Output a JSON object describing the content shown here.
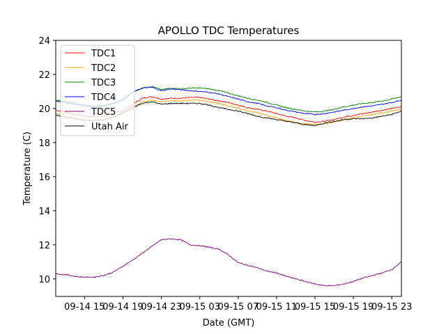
{
  "chart_data": {
    "type": "line",
    "title": "APOLLO TDC Temperatures",
    "xlabel": "Date (GMT)",
    "ylabel": "Temperature (C)",
    "x_unit": "hours since 09-14 00:00 GMT",
    "xlim": [
      12,
      48
    ],
    "ylim": [
      8.97,
      24
    ],
    "grid": false,
    "legend_position": "top-left",
    "x_ticks": [
      15,
      19,
      23,
      27,
      31,
      35,
      39,
      43,
      47
    ],
    "x_tick_labels": [
      "09-14 15",
      "09-14 19",
      "09-14 23",
      "09-15 03",
      "09-15 07",
      "09-15 11",
      "09-15 15",
      "09-15 19",
      "09-15 23"
    ],
    "y_ticks": [
      10,
      12,
      14,
      16,
      18,
      20,
      22,
      24
    ],
    "y_tick_labels": [
      "10",
      "12",
      "14",
      "16",
      "18",
      "20",
      "22",
      "24"
    ],
    "x": [
      12,
      13,
      14,
      15,
      16,
      17,
      18,
      19,
      20,
      21,
      22,
      23,
      24,
      25,
      26,
      27,
      28,
      29,
      30,
      31,
      32,
      33,
      34,
      35,
      36,
      37,
      38,
      39,
      40,
      41,
      42,
      43,
      44,
      45,
      46,
      47,
      48
    ],
    "series": [
      {
        "name": "TDC1",
        "color": "#ff0000",
        "values": [
          19.9,
          19.8,
          19.65,
          19.55,
          19.5,
          19.55,
          19.7,
          19.9,
          20.25,
          20.6,
          20.7,
          20.55,
          20.6,
          20.6,
          20.65,
          20.65,
          20.55,
          20.45,
          20.35,
          20.2,
          20.05,
          19.95,
          19.85,
          19.7,
          19.55,
          19.45,
          19.3,
          19.2,
          19.25,
          19.35,
          19.5,
          19.6,
          19.7,
          19.8,
          19.9,
          20.0,
          20.1
        ]
      },
      {
        "name": "TDC2",
        "color": "#ffa500",
        "values": [
          19.7,
          19.6,
          19.45,
          19.35,
          19.3,
          19.35,
          19.5,
          19.7,
          20.05,
          20.4,
          20.5,
          20.4,
          20.45,
          20.45,
          20.5,
          20.5,
          20.4,
          20.3,
          20.15,
          20.0,
          19.85,
          19.75,
          19.6,
          19.45,
          19.3,
          19.2,
          19.1,
          19.05,
          19.1,
          19.2,
          19.35,
          19.45,
          19.55,
          19.65,
          19.75,
          19.85,
          19.95
        ]
      },
      {
        "name": "TDC3",
        "color": "#008000",
        "values": [
          20.5,
          20.4,
          20.3,
          20.2,
          20.15,
          20.2,
          20.3,
          20.55,
          20.95,
          21.2,
          21.3,
          21.1,
          21.2,
          21.15,
          21.2,
          21.2,
          21.15,
          21.05,
          20.9,
          20.75,
          20.6,
          20.5,
          20.35,
          20.2,
          20.05,
          19.95,
          19.85,
          19.8,
          19.85,
          19.95,
          20.1,
          20.2,
          20.3,
          20.35,
          20.45,
          20.55,
          20.7
        ]
      },
      {
        "name": "TDC4",
        "color": "#0000ff",
        "values": [
          20.45,
          20.35,
          20.25,
          20.15,
          20.1,
          20.15,
          20.3,
          20.5,
          20.95,
          21.2,
          21.25,
          21.05,
          21.15,
          21.1,
          21.05,
          21.0,
          20.95,
          20.85,
          20.7,
          20.55,
          20.4,
          20.3,
          20.15,
          20.05,
          19.9,
          19.8,
          19.7,
          19.65,
          19.7,
          19.8,
          19.9,
          20.0,
          20.1,
          20.15,
          20.25,
          20.35,
          20.5
        ]
      },
      {
        "name": "TDC5",
        "color": "#800080",
        "values": [
          10.3,
          10.25,
          10.15,
          10.1,
          10.1,
          10.2,
          10.4,
          10.75,
          11.1,
          11.5,
          11.9,
          12.3,
          12.35,
          12.3,
          12.0,
          11.95,
          11.85,
          11.75,
          11.4,
          10.95,
          10.8,
          10.65,
          10.45,
          10.35,
          10.15,
          10.0,
          9.85,
          9.7,
          9.6,
          9.6,
          9.7,
          9.85,
          10.05,
          10.2,
          10.35,
          10.55,
          11.0
        ]
      },
      {
        "name": "Utah Air",
        "color": "#000000",
        "values": [
          19.6,
          19.5,
          19.4,
          19.3,
          19.3,
          19.35,
          19.5,
          19.75,
          20.05,
          20.3,
          20.4,
          20.25,
          20.3,
          20.3,
          20.3,
          20.3,
          20.2,
          20.05,
          19.95,
          19.85,
          19.7,
          19.55,
          19.45,
          19.35,
          19.25,
          19.15,
          19.05,
          19.0,
          19.15,
          19.25,
          19.35,
          19.4,
          19.4,
          19.45,
          19.55,
          19.65,
          19.85
        ]
      }
    ]
  }
}
